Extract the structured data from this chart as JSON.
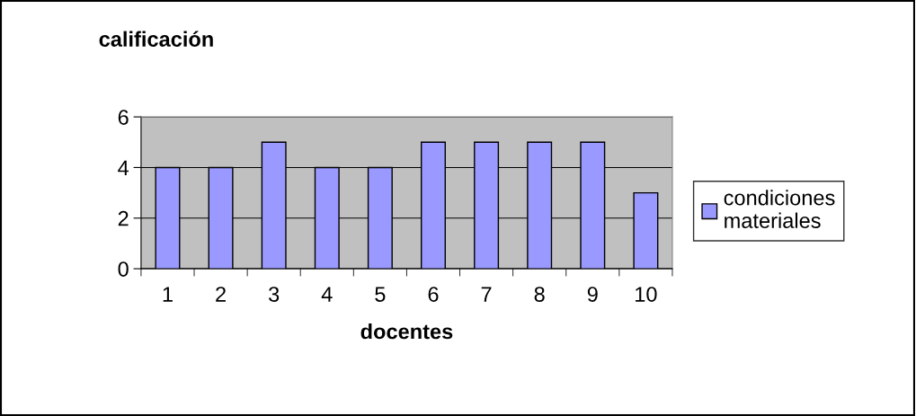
{
  "chart_data": {
    "type": "bar",
    "ylabel": "calificación",
    "xlabel": "docentes",
    "categories": [
      "1",
      "2",
      "3",
      "4",
      "5",
      "6",
      "7",
      "8",
      "9",
      "10"
    ],
    "series": [
      {
        "name": "condiciones materiales",
        "color": "#9999ff",
        "values": [
          4,
          4,
          5,
          4,
          4,
          5,
          5,
          5,
          5,
          3
        ]
      }
    ],
    "ylim": [
      0,
      6
    ],
    "yticks": [
      0,
      2,
      4,
      6
    ],
    "grid": "y",
    "legend": "right"
  }
}
